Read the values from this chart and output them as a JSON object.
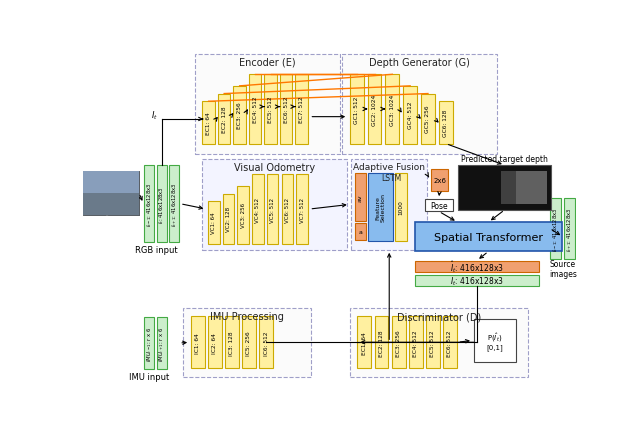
{
  "encoder_label": "Encoder (E)",
  "depth_gen_label": "Depth Generator (G)",
  "vo_label": "Visual Odometry",
  "adaptive_fusion_label": "Adaptive Fusion",
  "lstm_label": "LSTM",
  "imu_proc_label": "IMU Processing",
  "discriminator_label": "Discriminator (D)",
  "spatial_transformer_label": "Spatial Transformer",
  "pose_label": "Pose",
  "predicted_depth_label": "Predicted target depth",
  "rgb_input_label": "RGB input",
  "imu_input_label": "IMU input",
  "source_images_label": "Source\nimages",
  "encoder_blocks": [
    "EC1: 64",
    "EC2: 128",
    "EC3: 256",
    "EC4: 512",
    "EC5: 512",
    "EC6: 512",
    "EC7: 512"
  ],
  "depth_gen_blocks": [
    "GC1: 512",
    "GC2: 1024",
    "GC3: 1024",
    "GC4: 512",
    "GC5: 256",
    "GC6: 128"
  ],
  "vo_blocks": [
    "VC1: 64",
    "VC2: 128",
    "VC3: 256",
    "VC4: 512",
    "VC5: 512",
    "VC6: 512",
    "VC7: 512"
  ],
  "imu_blocks": [
    "IC1: 64",
    "IC2: 64",
    "IC3: 128",
    "IC5: 256",
    "IC6: 512"
  ],
  "disc_blocks": [
    "EC1: 64",
    "EC2: 128",
    "EC3: 256",
    "EC4: 512",
    "EC5: 512",
    "EC6: 512"
  ],
  "yellow_fill": "#FFF0A0",
  "yellow_edge": "#CCAA00",
  "green_fill": "#CCEECC",
  "green_edge": "#44AA44",
  "orange_fill": "#F0A070",
  "orange_edge": "#CC6600",
  "blue_fill": "#88BBEE",
  "blue_edge": "#2255AA",
  "dashed_box_color": "#8888BB"
}
